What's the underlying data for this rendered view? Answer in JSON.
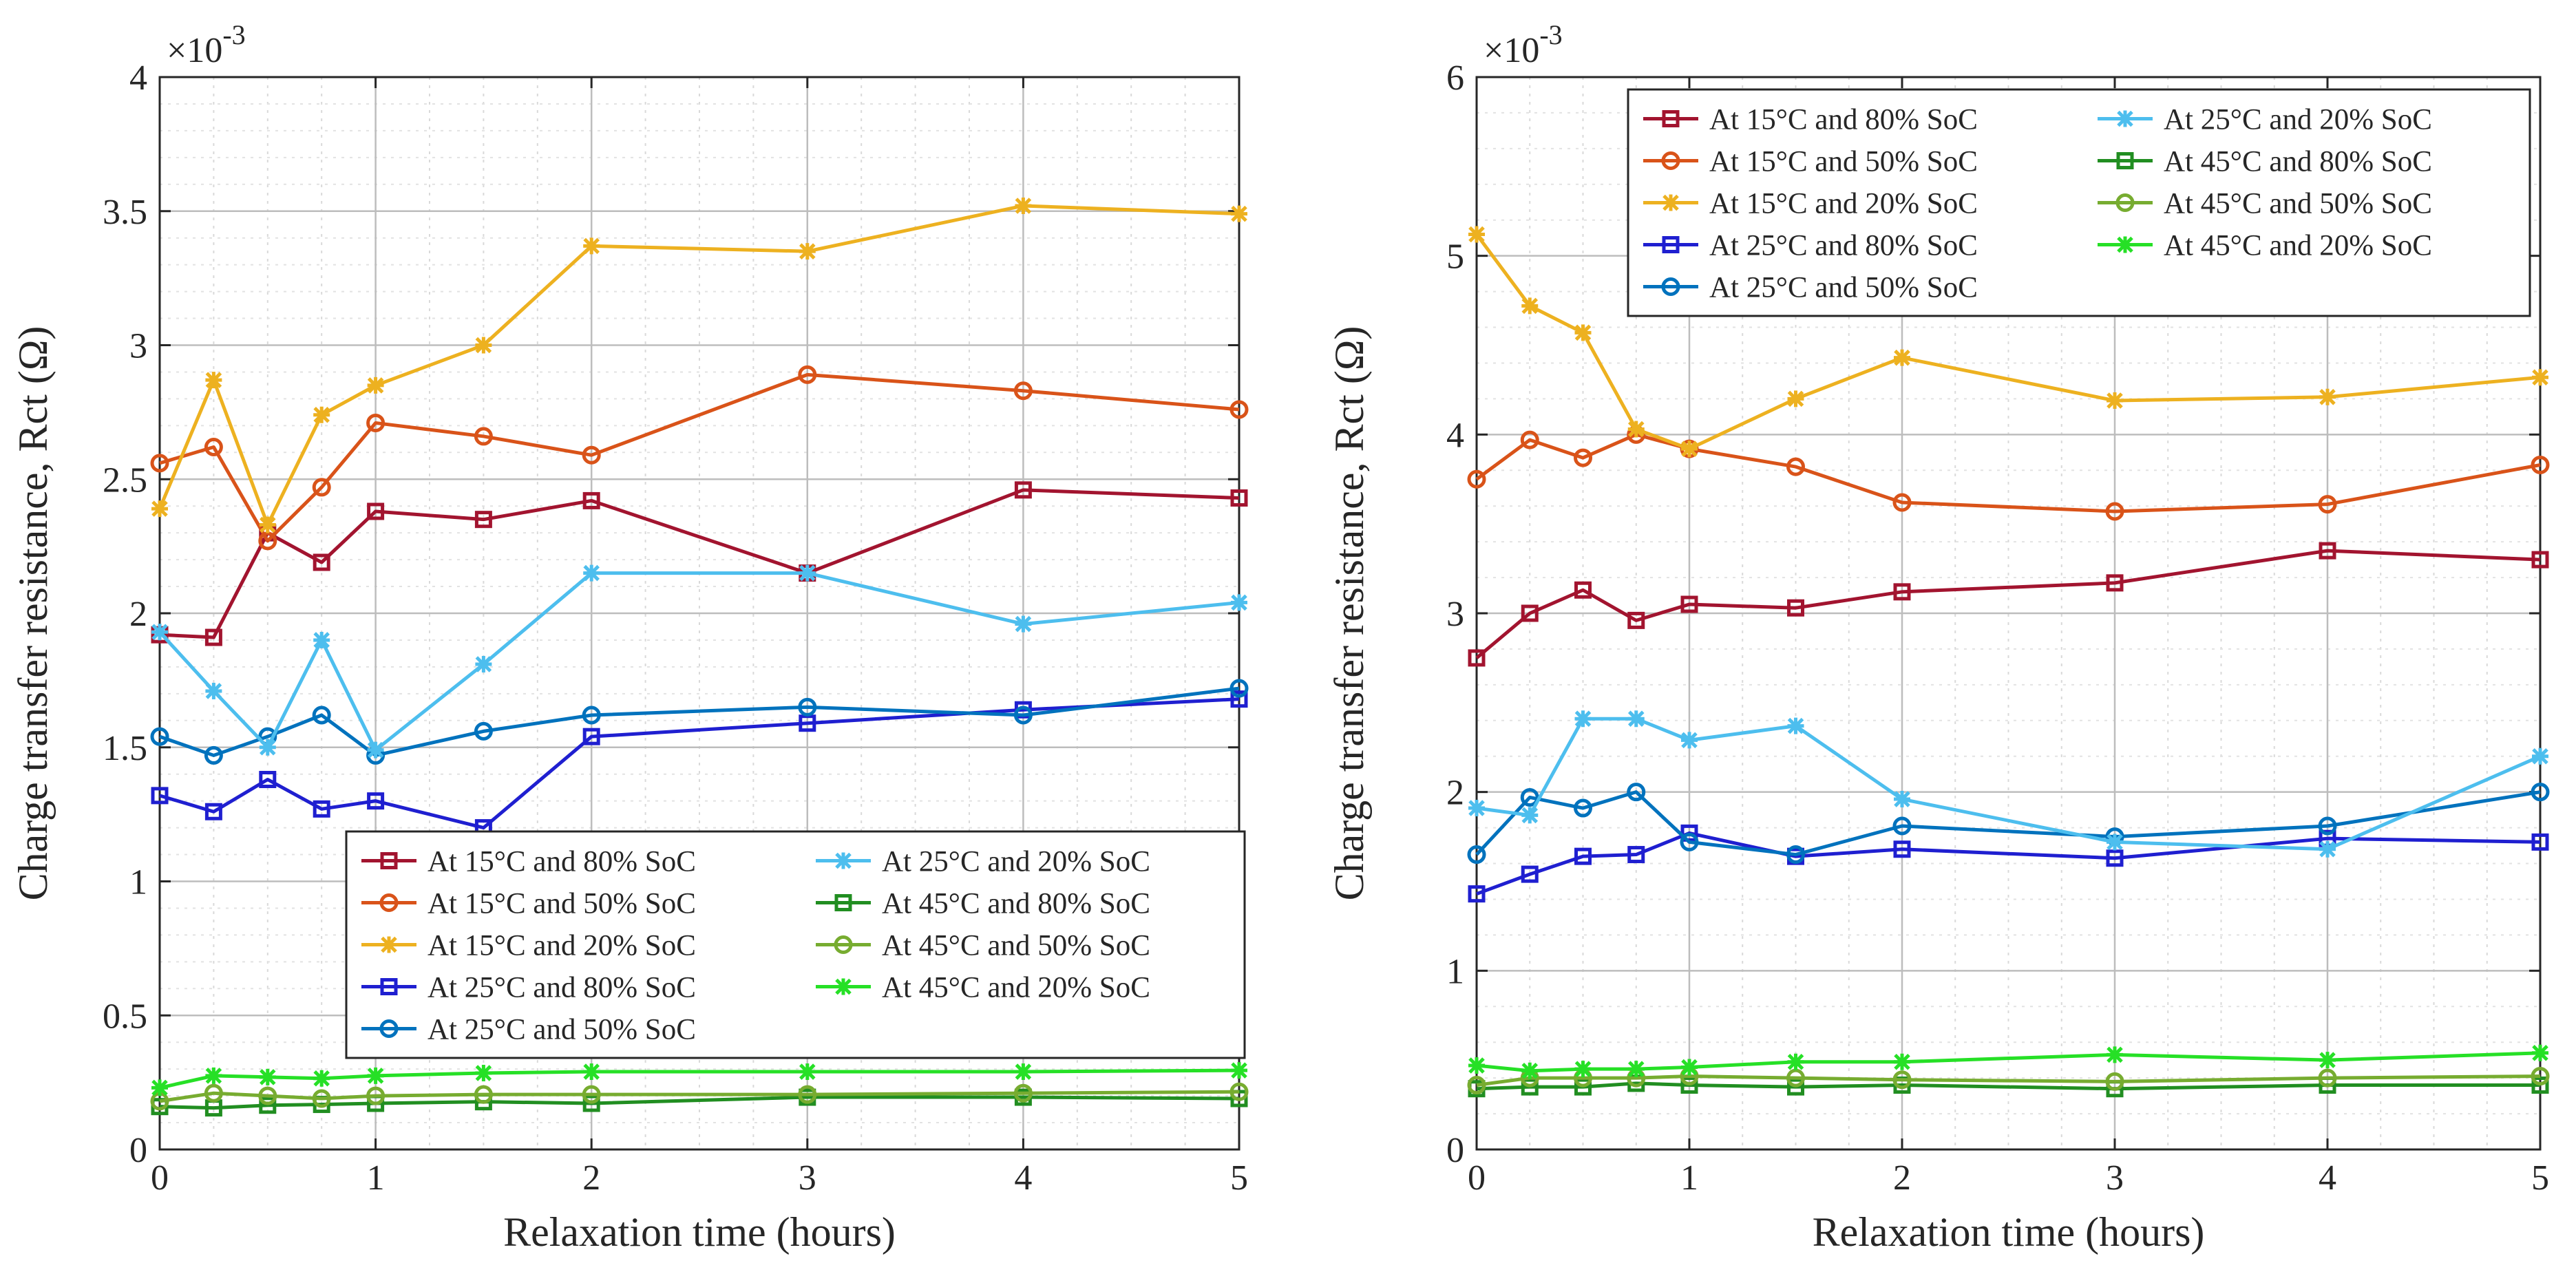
{
  "chart_data": [
    {
      "type": "line",
      "xlabel": "Relaxation time (hours)",
      "ylabel": "Charge transfer resistance, Rct (Ω)",
      "exponent_label": "×10",
      "exponent_power": "-3",
      "xlim": [
        0,
        5
      ],
      "ylim": [
        0,
        4
      ],
      "xticks": [
        "0",
        "1",
        "2",
        "3",
        "4",
        "5"
      ],
      "yticks": [
        "0",
        "0.5",
        "1",
        "1.5",
        "2",
        "2.5",
        "3",
        "3.5",
        "4"
      ],
      "grid": true,
      "legend_position": "lower-right",
      "x": [
        0,
        0.25,
        0.5,
        0.75,
        1,
        1.5,
        2,
        3,
        4,
        5
      ],
      "series": [
        {
          "name": "At 15°C and 80% SoC",
          "color": "#a2142f",
          "marker": "square",
          "values": [
            1.92,
            1.91,
            2.3,
            2.19,
            2.38,
            2.35,
            2.42,
            2.15,
            2.46,
            2.43
          ]
        },
        {
          "name": "At 15°C and 50% SoC",
          "color": "#d95319",
          "marker": "circle",
          "values": [
            2.56,
            2.62,
            2.27,
            2.47,
            2.71,
            2.66,
            2.59,
            2.89,
            2.83,
            2.76
          ]
        },
        {
          "name": "At 15°C and 20% SoC",
          "color": "#edb120",
          "marker": "star",
          "values": [
            2.39,
            2.87,
            2.33,
            2.74,
            2.85,
            3.0,
            3.37,
            3.35,
            3.52,
            3.49
          ]
        },
        {
          "name": "At 25°C and 80% SoC",
          "color": "#1f1fd0",
          "marker": "square",
          "values": [
            1.32,
            1.26,
            1.38,
            1.27,
            1.3,
            1.2,
            1.54,
            1.59,
            1.64,
            1.68
          ]
        },
        {
          "name": "At 25°C and 50% SoC",
          "color": "#0072bd",
          "marker": "circle",
          "values": [
            1.54,
            1.47,
            1.54,
            1.62,
            1.47,
            1.56,
            1.62,
            1.65,
            1.62,
            1.72
          ]
        },
        {
          "name": "At 25°C and 20% SoC",
          "color": "#4dbeee",
          "marker": "star",
          "values": [
            1.93,
            1.71,
            1.5,
            1.9,
            1.49,
            1.81,
            2.15,
            2.15,
            1.96,
            2.04
          ]
        },
        {
          "name": "At 45°C and 80% SoC",
          "color": "#218e21",
          "marker": "square",
          "values": [
            0.16,
            0.155,
            0.165,
            0.168,
            0.172,
            0.178,
            0.172,
            0.195,
            0.195,
            0.19
          ]
        },
        {
          "name": "At 45°C and 50% SoC",
          "color": "#77ac30",
          "marker": "circle",
          "values": [
            0.18,
            0.21,
            0.2,
            0.19,
            0.2,
            0.205,
            0.205,
            0.205,
            0.21,
            0.215
          ]
        },
        {
          "name": "At 45°C and 20% SoC",
          "color": "#26e026",
          "marker": "star",
          "values": [
            0.23,
            0.275,
            0.27,
            0.265,
            0.275,
            0.285,
            0.29,
            0.29,
            0.29,
            0.295
          ]
        }
      ]
    },
    {
      "type": "line",
      "xlabel": "Relaxation time (hours)",
      "ylabel": "Charge transfer resistance, Rct (Ω)",
      "exponent_label": "×10",
      "exponent_power": "-3",
      "xlim": [
        0,
        5
      ],
      "ylim": [
        0,
        6
      ],
      "xticks": [
        "0",
        "1",
        "2",
        "3",
        "4",
        "5"
      ],
      "yticks": [
        "0",
        "1",
        "2",
        "3",
        "4",
        "5",
        "6"
      ],
      "grid": true,
      "legend_position": "top-right",
      "x": [
        0,
        0.25,
        0.5,
        0.75,
        1,
        1.5,
        2,
        3,
        4,
        5
      ],
      "series": [
        {
          "name": "At 15°C and 80% SoC",
          "color": "#a2142f",
          "marker": "square",
          "values": [
            2.75,
            3.0,
            3.13,
            2.96,
            3.05,
            3.03,
            3.12,
            3.17,
            3.35,
            3.3
          ]
        },
        {
          "name": "At 15°C and 50% SoC",
          "color": "#d95319",
          "marker": "circle",
          "values": [
            3.75,
            3.97,
            3.87,
            4.0,
            3.92,
            3.82,
            3.62,
            3.57,
            3.61,
            3.83
          ]
        },
        {
          "name": "At 15°C and 20% SoC",
          "color": "#edb120",
          "marker": "star",
          "values": [
            5.12,
            4.72,
            4.57,
            4.03,
            3.92,
            4.2,
            4.43,
            4.19,
            4.21,
            4.32
          ]
        },
        {
          "name": "At 25°C and 80% SoC",
          "color": "#1f1fd0",
          "marker": "square",
          "values": [
            1.43,
            1.54,
            1.64,
            1.65,
            1.77,
            1.64,
            1.68,
            1.63,
            1.74,
            1.72
          ]
        },
        {
          "name": "At 25°C and 50% SoC",
          "color": "#0072bd",
          "marker": "circle",
          "values": [
            1.65,
            1.97,
            1.91,
            2.0,
            1.72,
            1.65,
            1.81,
            1.75,
            1.81,
            2.0
          ]
        },
        {
          "name": "At 25°C and 20% SoC",
          "color": "#4dbeee",
          "marker": "star",
          "values": [
            1.91,
            1.87,
            2.41,
            2.41,
            2.29,
            2.37,
            1.96,
            1.72,
            1.68,
            2.2
          ]
        },
        {
          "name": "At 45°C and 80% SoC",
          "color": "#218e21",
          "marker": "square",
          "values": [
            0.34,
            0.35,
            0.35,
            0.37,
            0.36,
            0.35,
            0.36,
            0.34,
            0.36,
            0.36
          ]
        },
        {
          "name": "At 45°C and 50% SoC",
          "color": "#77ac30",
          "marker": "circle",
          "values": [
            0.36,
            0.4,
            0.4,
            0.4,
            0.41,
            0.4,
            0.39,
            0.38,
            0.4,
            0.41
          ]
        },
        {
          "name": "At 45°C and 20% SoC",
          "color": "#26e026",
          "marker": "star",
          "values": [
            0.47,
            0.44,
            0.45,
            0.45,
            0.46,
            0.49,
            0.49,
            0.53,
            0.5,
            0.54
          ]
        }
      ]
    }
  ]
}
